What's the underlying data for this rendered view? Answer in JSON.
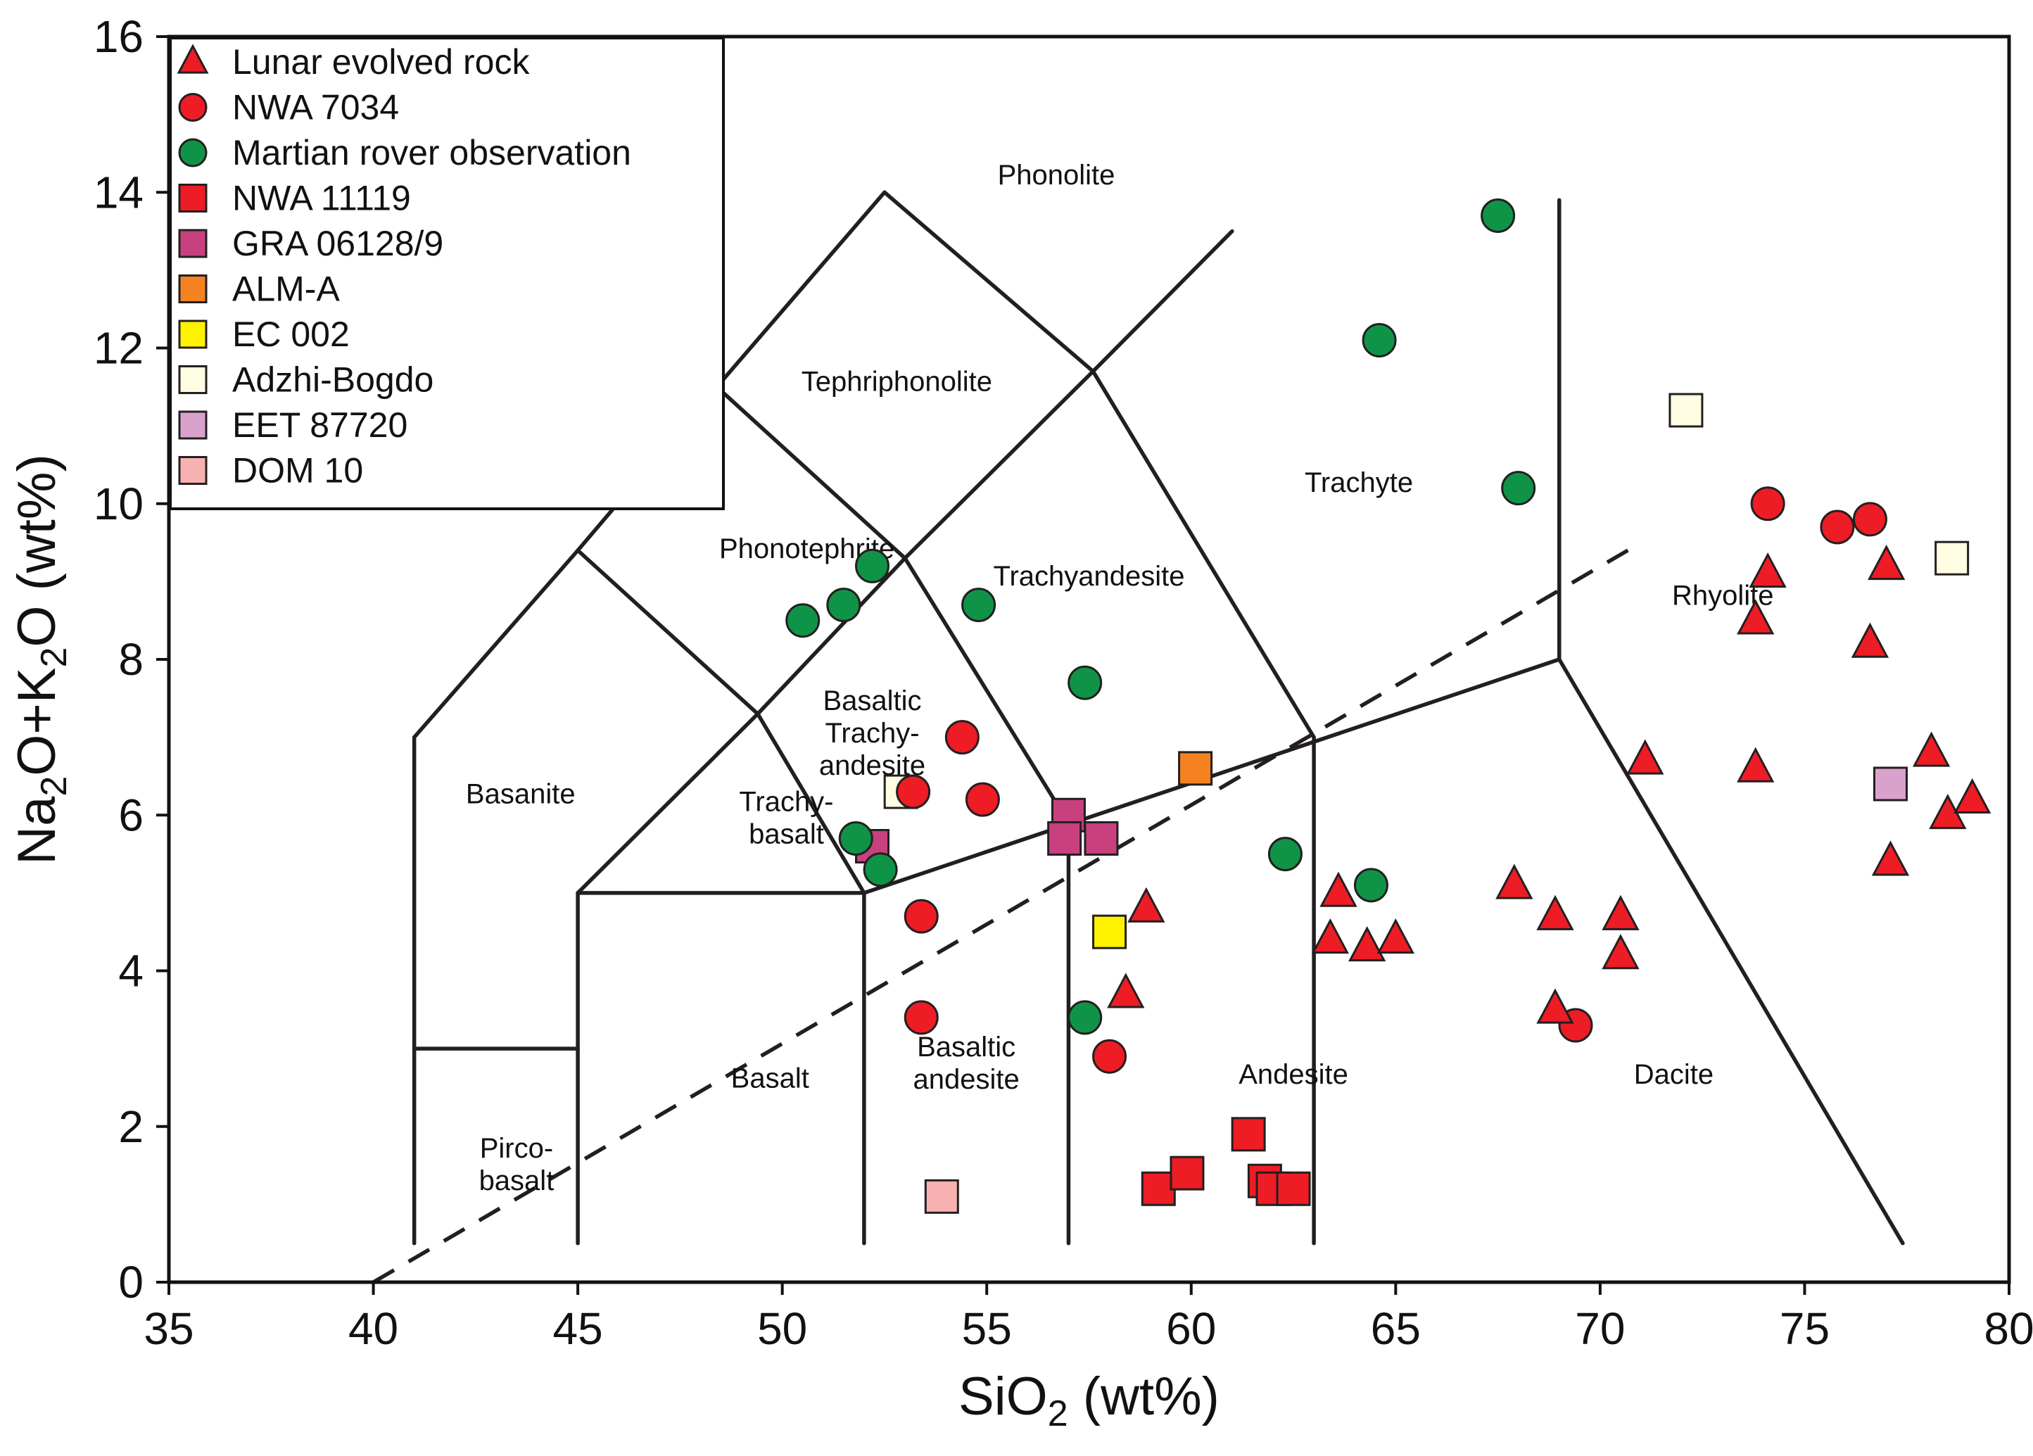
{
  "chart_data": {
    "type": "scatter",
    "title": "",
    "xlabel": {
      "main": "SiO",
      "sub": "2",
      "tail": " (wt%)"
    },
    "ylabel": {
      "parts": [
        "Na",
        "2",
        "O+K",
        "2",
        "O (wt%)"
      ]
    },
    "xlim": [
      35,
      80
    ],
    "ylim": [
      0,
      16
    ],
    "xticks": [
      35,
      40,
      45,
      50,
      55,
      60,
      65,
      70,
      75,
      80
    ],
    "yticks": [
      0,
      2,
      4,
      6,
      8,
      10,
      12,
      14,
      16
    ],
    "grid": false,
    "legend_position": "top-left",
    "tas_boundaries": [
      [
        [
          41,
          0.5
        ],
        [
          41,
          7
        ]
      ],
      [
        [
          41,
          7
        ],
        [
          45,
          9.4
        ]
      ],
      [
        [
          45,
          9.4
        ],
        [
          48.4,
          11.5
        ]
      ],
      [
        [
          48.4,
          11.5
        ],
        [
          52.5,
          14
        ]
      ],
      [
        [
          52.5,
          14
        ],
        [
          57.6,
          11.7
        ]
      ],
      [
        [
          57.6,
          11.7
        ],
        [
          61,
          13.5
        ]
      ],
      [
        [
          45,
          9.4
        ],
        [
          49.4,
          7.3
        ]
      ],
      [
        [
          49.4,
          7.3
        ],
        [
          53,
          9.3
        ]
      ],
      [
        [
          53,
          9.3
        ],
        [
          57.6,
          11.7
        ]
      ],
      [
        [
          48.4,
          11.5
        ],
        [
          53,
          9.3
        ]
      ],
      [
        [
          53,
          9.3
        ],
        [
          57,
          5.9
        ]
      ],
      [
        [
          57.6,
          11.7
        ],
        [
          63,
          7
        ]
      ],
      [
        [
          45,
          5
        ],
        [
          49.4,
          7.3
        ]
      ],
      [
        [
          49.4,
          7.3
        ],
        [
          52,
          5
        ]
      ],
      [
        [
          45,
          5
        ],
        [
          52,
          5
        ]
      ],
      [
        [
          52,
          5
        ],
        [
          69,
          8
        ]
      ],
      [
        [
          69,
          8
        ],
        [
          69,
          13.9
        ]
      ],
      [
        [
          69,
          8
        ],
        [
          77.4,
          0.5
        ]
      ],
      [
        [
          41,
          3
        ],
        [
          45,
          3
        ]
      ],
      [
        [
          45,
          0.5
        ],
        [
          45,
          5
        ]
      ],
      [
        [
          52,
          0.5
        ],
        [
          52,
          5
        ]
      ],
      [
        [
          57,
          0.5
        ],
        [
          57,
          5.9
        ]
      ],
      [
        [
          63,
          0.5
        ],
        [
          63,
          7
        ]
      ]
    ],
    "alkaline_divide": [
      [
        40,
        0
      ],
      [
        71,
        9.5
      ]
    ],
    "field_labels": [
      {
        "lines": [
          "Phonolite"
        ],
        "x": 56.7,
        "y": 14.1
      },
      {
        "lines": [
          "Tephriphonolite"
        ],
        "x": 52.8,
        "y": 11.45
      },
      {
        "lines": [
          "Trachyte"
        ],
        "x": 64.1,
        "y": 10.15
      },
      {
        "lines": [
          "Phonotephrite"
        ],
        "x": 50.6,
        "y": 9.3
      },
      {
        "lines": [
          "Trachyandesite"
        ],
        "x": 57.5,
        "y": 8.95
      },
      {
        "lines": [
          "Rhyolite"
        ],
        "x": 73,
        "y": 8.7
      },
      {
        "lines": [
          "Basaltic",
          "Trachy-",
          "andesite"
        ],
        "x": 52.2,
        "y": 7.35
      },
      {
        "lines": [
          "Basanite"
        ],
        "x": 43.6,
        "y": 6.15
      },
      {
        "lines": [
          "Trachy-",
          "basalt"
        ],
        "x": 50.1,
        "y": 6.05
      },
      {
        "lines": [
          "Basalt"
        ],
        "x": 49.7,
        "y": 2.5
      },
      {
        "lines": [
          "Basaltic",
          "andesite"
        ],
        "x": 54.5,
        "y": 2.9
      },
      {
        "lines": [
          "Andesite"
        ],
        "x": 62.5,
        "y": 2.55
      },
      {
        "lines": [
          "Dacite"
        ],
        "x": 71.8,
        "y": 2.55
      },
      {
        "lines": [
          "Pirco-",
          "basalt"
        ],
        "x": 43.5,
        "y": 1.6
      }
    ],
    "series": [
      {
        "name": "Lunar evolved rock",
        "marker": "triangle",
        "color": "#ee1c25",
        "points": [
          [
            74.1,
            9.1
          ],
          [
            73.8,
            8.5
          ],
          [
            77,
            9.2
          ],
          [
            76.6,
            8.2
          ],
          [
            71.1,
            6.7
          ],
          [
            73.8,
            6.6
          ],
          [
            78.1,
            6.8
          ],
          [
            78.5,
            6
          ],
          [
            79.1,
            6.2
          ],
          [
            77.1,
            5.4
          ],
          [
            67.9,
            5.1
          ],
          [
            68.9,
            4.7
          ],
          [
            70.5,
            4.7
          ],
          [
            70.5,
            4.2
          ],
          [
            68.9,
            3.5
          ],
          [
            63.6,
            5
          ],
          [
            63.4,
            4.4
          ],
          [
            64.3,
            4.3
          ],
          [
            65,
            4.4
          ],
          [
            58.9,
            4.8
          ],
          [
            58.4,
            3.7
          ]
        ]
      },
      {
        "name": "NWA 7034",
        "marker": "circle",
        "color": "#ee1c25",
        "points": [
          [
            74.1,
            10
          ],
          [
            75.8,
            9.7
          ],
          [
            76.6,
            9.8
          ],
          [
            69.4,
            3.3
          ],
          [
            54.4,
            7
          ],
          [
            53.2,
            6.3
          ],
          [
            54.9,
            6.2
          ],
          [
            53.4,
            4.7
          ],
          [
            53.4,
            3.4
          ],
          [
            58,
            2.9
          ]
        ]
      },
      {
        "name": "Martian rover observation",
        "marker": "circle",
        "color": "#0f9447",
        "points": [
          [
            67.5,
            13.7
          ],
          [
            64.6,
            12.1
          ],
          [
            68,
            10.2
          ],
          [
            52.2,
            9.2
          ],
          [
            51.5,
            8.7
          ],
          [
            50.5,
            8.5
          ],
          [
            54.8,
            8.7
          ],
          [
            57.4,
            7.7
          ],
          [
            62.3,
            5.5
          ],
          [
            64.4,
            5.1
          ],
          [
            51.8,
            5.7
          ],
          [
            52.4,
            5.3
          ],
          [
            57.4,
            3.4
          ]
        ]
      },
      {
        "name": "NWA 11119",
        "marker": "square",
        "color": "#ee1c25",
        "points": [
          [
            61.4,
            1.9
          ],
          [
            59.2,
            1.2
          ],
          [
            59.9,
            1.4
          ],
          [
            61.8,
            1.3
          ],
          [
            62,
            1.2
          ],
          [
            62.5,
            1.2
          ]
        ]
      },
      {
        "name": "GRA 06128/9",
        "marker": "square",
        "color": "#c8417e",
        "points": [
          [
            57,
            6
          ],
          [
            56.9,
            5.7
          ],
          [
            57.8,
            5.7
          ],
          [
            52.2,
            5.6
          ]
        ]
      },
      {
        "name": "ALM-A",
        "marker": "square",
        "color": "#f58220",
        "points": [
          [
            60.1,
            6.6
          ]
        ]
      },
      {
        "name": "EC 002",
        "marker": "square",
        "color": "#fff200",
        "points": [
          [
            58,
            4.5
          ]
        ]
      },
      {
        "name": "Adzhi-Bogdo",
        "marker": "square",
        "color": "#fefde2",
        "points": [
          [
            72.1,
            11.2
          ],
          [
            78.6,
            9.3
          ],
          [
            52.9,
            6.3
          ]
        ]
      },
      {
        "name": "EET 87720",
        "marker": "square",
        "color": "#d9a2cc",
        "points": [
          [
            77.1,
            6.4
          ]
        ]
      },
      {
        "name": "DOM 10",
        "marker": "square",
        "color": "#f8b1b1",
        "points": [
          [
            53.9,
            1.1
          ]
        ]
      }
    ]
  }
}
